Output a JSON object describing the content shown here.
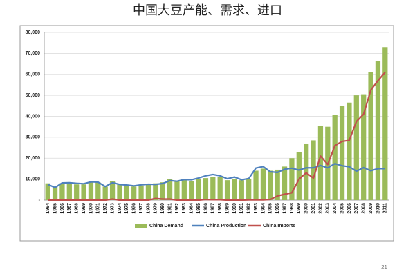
{
  "chart_data": {
    "type": "bar",
    "title": "中国大豆产能、需求、进口",
    "page_number": "21",
    "categories": [
      "1964",
      "1965",
      "1966",
      "1967",
      "1968",
      "1969",
      "1970",
      "1971",
      "1972",
      "1973",
      "1974",
      "1975",
      "1976",
      "1977",
      "1978",
      "1979",
      "1980",
      "1981",
      "1982",
      "1983",
      "1984",
      "1985",
      "1986",
      "1987",
      "1988",
      "1989",
      "1990",
      "1991",
      "1992",
      "1993",
      "1994",
      "1995",
      "1996",
      "1997",
      "1998",
      "1999",
      "2000",
      "2001",
      "2002",
      "2003",
      "2004",
      "2005",
      "2006",
      "2007",
      "2008",
      "2009",
      "2010",
      "2011"
    ],
    "series": [
      {
        "name": "China Demand",
        "type": "bar",
        "color": "#9bbb59",
        "values": [
          8000,
          6500,
          8000,
          8000,
          7500,
          7500,
          8500,
          8500,
          6500,
          9000,
          7500,
          7000,
          6500,
          7000,
          7500,
          8000,
          8500,
          10000,
          9000,
          9500,
          9000,
          10000,
          10500,
          11000,
          11000,
          9500,
          10000,
          9500,
          10000,
          14000,
          15000,
          14000,
          14500,
          16000,
          20000,
          23000,
          27000,
          28500,
          35500,
          35000,
          40500,
          45000,
          46500,
          50000,
          50500,
          61000,
          66500,
          73000
        ]
      },
      {
        "name": "China Production",
        "type": "line",
        "color": "#4f81bd",
        "values": [
          7500,
          6000,
          8200,
          8300,
          8000,
          7800,
          8700,
          8600,
          6500,
          8300,
          7500,
          7200,
          6800,
          7300,
          7600,
          7500,
          7900,
          9300,
          9000,
          9800,
          9700,
          10500,
          11600,
          12200,
          11600,
          10200,
          11000,
          9700,
          10300,
          15300,
          16000,
          13500,
          13200,
          14700,
          15200,
          14300,
          15400,
          15400,
          16500,
          15400,
          17400,
          16400,
          15900,
          13800,
          15500,
          14000,
          15000,
          15000
        ]
      },
      {
        "name": "China Imports",
        "type": "line",
        "color": "#c0504d",
        "values": [
          0,
          0,
          0,
          0,
          0,
          0,
          0,
          0,
          0,
          500,
          0,
          0,
          0,
          0,
          0,
          800,
          500,
          500,
          0,
          0,
          0,
          0,
          300,
          200,
          200,
          0,
          0,
          0,
          100,
          100,
          100,
          300,
          2000,
          2800,
          3500,
          10000,
          13000,
          10500,
          21000,
          17000,
          26000,
          28000,
          28500,
          37500,
          41000,
          52500,
          57000,
          61000
        ]
      }
    ],
    "ylim": [
      0,
      80000
    ],
    "yticks": [
      {
        "value": 0,
        "label": "-"
      },
      {
        "value": 10000,
        "label": "10,000"
      },
      {
        "value": 20000,
        "label": "20,000"
      },
      {
        "value": 30000,
        "label": "30,000"
      },
      {
        "value": 40000,
        "label": "40,000"
      },
      {
        "value": 50000,
        "label": "50,000"
      },
      {
        "value": 60000,
        "label": "60,000"
      },
      {
        "value": 70000,
        "label": "70,000"
      },
      {
        "value": 80000,
        "label": "80,000"
      }
    ],
    "grid": true
  }
}
